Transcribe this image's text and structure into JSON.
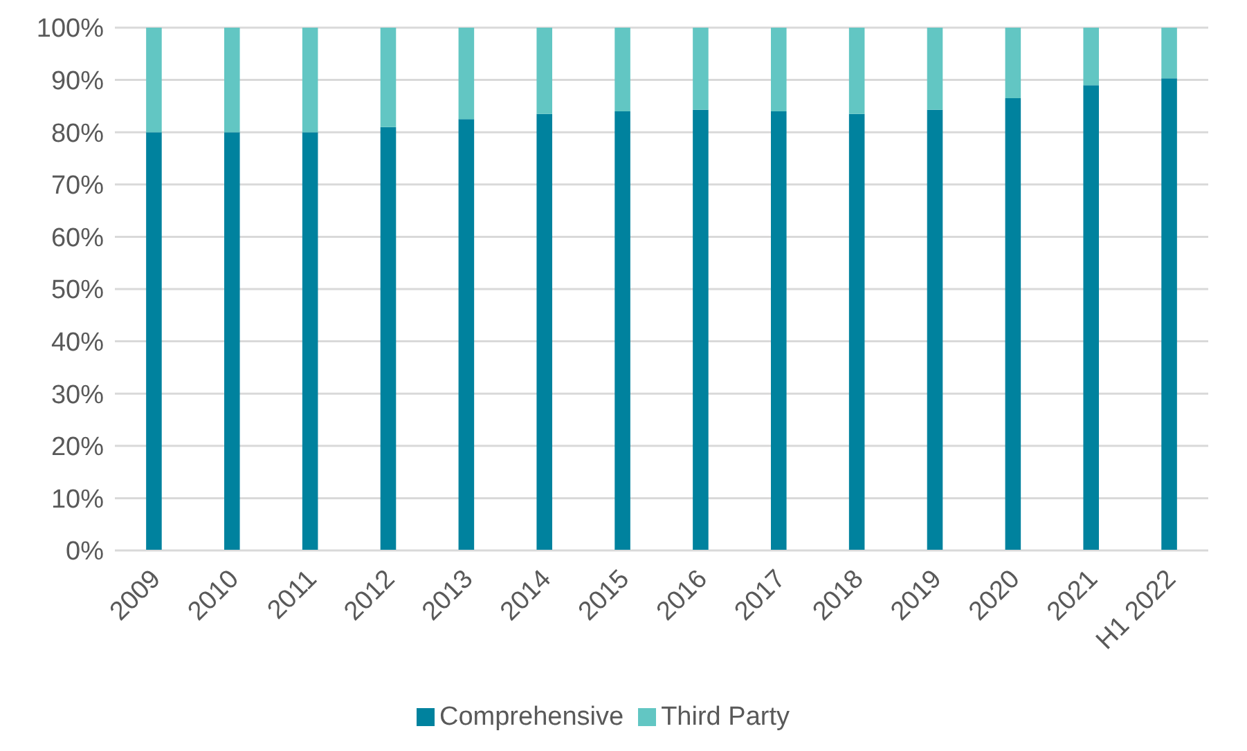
{
  "chart_data": {
    "type": "bar",
    "stacked": true,
    "categories": [
      "2009",
      "2010",
      "2011",
      "2012",
      "2013",
      "2014",
      "2015",
      "2016",
      "2017",
      "2018",
      "2019",
      "2020",
      "2021",
      "H1 2022"
    ],
    "series": [
      {
        "name": "Comprehensive",
        "color": "#00829e",
        "values": [
          80,
          80,
          80,
          81,
          82.5,
          83.5,
          84,
          84.3,
          84,
          83.5,
          84.3,
          86.5,
          89,
          90.3
        ]
      },
      {
        "name": "Third Party",
        "color": "#62c6c3",
        "values": [
          20,
          20,
          20,
          19,
          17.5,
          16.5,
          16,
          15.7,
          16,
          16.5,
          15.7,
          13.5,
          11,
          9.7
        ]
      }
    ],
    "ylim": [
      0,
      100
    ],
    "yticks": [
      {
        "value": 0,
        "label": "0%"
      },
      {
        "value": 10,
        "label": "10%"
      },
      {
        "value": 20,
        "label": "20%"
      },
      {
        "value": 30,
        "label": "30%"
      },
      {
        "value": 40,
        "label": "40%"
      },
      {
        "value": 50,
        "label": "50%"
      },
      {
        "value": 60,
        "label": "60%"
      },
      {
        "value": 70,
        "label": "70%"
      },
      {
        "value": 80,
        "label": "80%"
      },
      {
        "value": 90,
        "label": "90%"
      },
      {
        "value": 100,
        "label": "100%"
      }
    ],
    "grid": "y",
    "legend": "bottom"
  }
}
